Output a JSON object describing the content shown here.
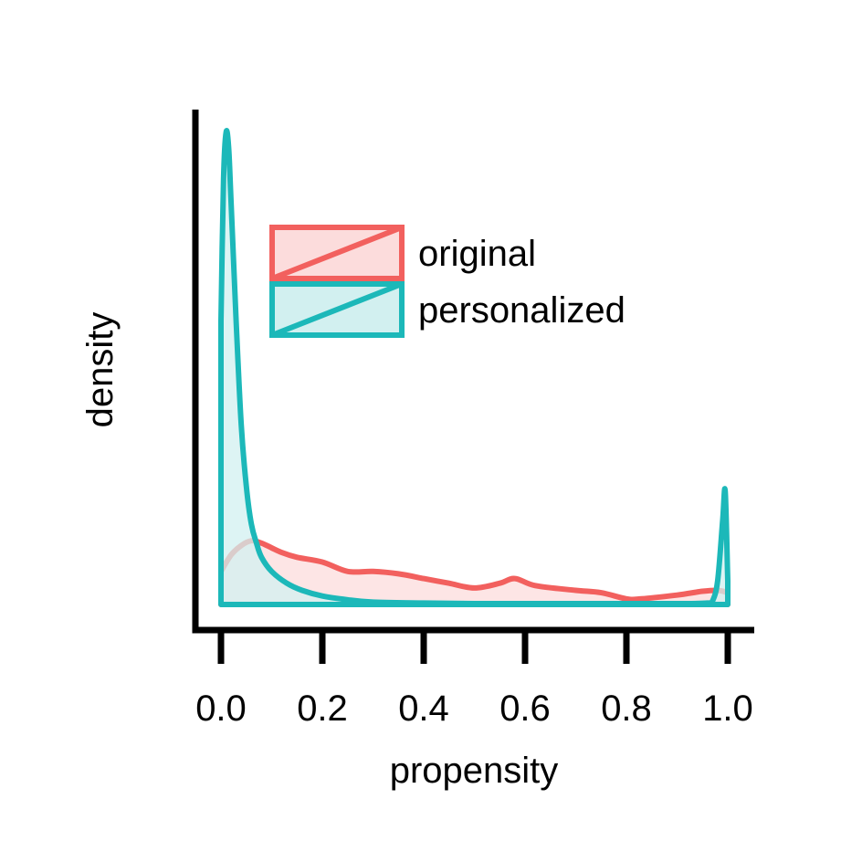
{
  "chart_data": {
    "type": "area",
    "title": "",
    "xlabel": "propensity",
    "ylabel": "density",
    "xlim": [
      0.0,
      1.0
    ],
    "x_ticks": [
      "0.0",
      "0.2",
      "0.4",
      "0.6",
      "0.8",
      "1.0"
    ],
    "y_ticks_shown": false,
    "grid": false,
    "legend_position": "top-center",
    "series": [
      {
        "name": "original",
        "color": "#F2605E",
        "fill": "#FCDCDC",
        "x": [
          0.0,
          0.02,
          0.04,
          0.06,
          0.08,
          0.1,
          0.12,
          0.15,
          0.2,
          0.25,
          0.3,
          0.35,
          0.4,
          0.45,
          0.5,
          0.55,
          0.58,
          0.62,
          0.7,
          0.75,
          0.8,
          0.83,
          0.9,
          0.95,
          0.98,
          1.0
        ],
        "y": [
          0.07,
          0.105,
          0.125,
          0.135,
          0.13,
          0.12,
          0.11,
          0.1,
          0.09,
          0.07,
          0.07,
          0.065,
          0.055,
          0.045,
          0.035,
          0.045,
          0.055,
          0.04,
          0.03,
          0.025,
          0.012,
          0.012,
          0.02,
          0.028,
          0.03,
          0.025
        ]
      },
      {
        "name": "personalized",
        "color": "#1CB8B9",
        "fill": "#D2F0F0",
        "x": [
          0.0,
          0.005,
          0.01,
          0.015,
          0.02,
          0.03,
          0.04,
          0.05,
          0.06,
          0.07,
          0.08,
          0.1,
          0.13,
          0.16,
          0.2,
          0.25,
          0.3,
          0.4,
          0.5,
          0.6,
          0.7,
          0.8,
          0.9,
          0.96,
          0.97,
          0.98,
          0.99,
          0.995,
          1.0
        ],
        "y": [
          0.6,
          0.9,
          1.0,
          0.97,
          0.85,
          0.6,
          0.38,
          0.25,
          0.17,
          0.13,
          0.1,
          0.07,
          0.045,
          0.03,
          0.018,
          0.01,
          0.005,
          0.003,
          0.002,
          0.002,
          0.002,
          0.002,
          0.002,
          0.003,
          0.008,
          0.05,
          0.18,
          0.24,
          0.05
        ]
      }
    ]
  }
}
